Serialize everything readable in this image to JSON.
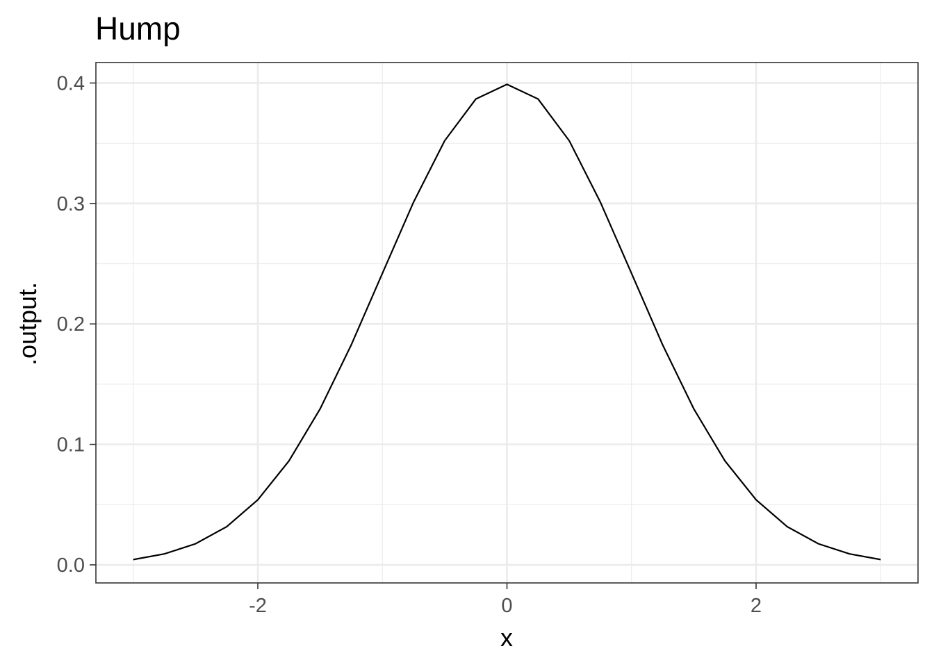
{
  "chart_data": {
    "type": "line",
    "title": "Hump",
    "xlabel": "x",
    "ylabel": ".output.",
    "xlim": [
      -3.3,
      3.3
    ],
    "ylim": [
      -0.015,
      0.417
    ],
    "x_ticks": [
      -2,
      0,
      2
    ],
    "x_tick_labels": [
      "-2",
      "0",
      "2"
    ],
    "y_ticks": [
      0.0,
      0.1,
      0.2,
      0.3,
      0.4
    ],
    "y_tick_labels": [
      "0.0",
      "0.1",
      "0.2",
      "0.3",
      "0.4"
    ],
    "x_minor_breaks": [
      -3,
      -1,
      1,
      3
    ],
    "y_minor_breaks": [
      0.05,
      0.15,
      0.25,
      0.35
    ],
    "grid": true,
    "legend": "none",
    "colors": {
      "line": "#000000",
      "grid": "#ebebeb",
      "panel_border": "#333333",
      "background": "#ffffff",
      "tick_label": "#4d4d4d"
    },
    "series": [
      {
        "x": [
          -3.0,
          -2.75,
          -2.5,
          -2.25,
          -2.0,
          -1.75,
          -1.5,
          -1.25,
          -1.0,
          -0.75,
          -0.5,
          -0.25,
          0.0,
          0.25,
          0.5,
          0.75,
          1.0,
          1.25,
          1.5,
          1.75,
          2.0,
          2.25,
          2.5,
          2.75,
          3.0
        ],
        "y": [
          0.0044,
          0.0091,
          0.0175,
          0.0317,
          0.054,
          0.0863,
          0.1295,
          0.1826,
          0.242,
          0.3011,
          0.3521,
          0.3867,
          0.3989,
          0.3867,
          0.3521,
          0.3011,
          0.242,
          0.1826,
          0.1295,
          0.0863,
          0.054,
          0.0317,
          0.0175,
          0.0091,
          0.0044
        ]
      }
    ]
  }
}
